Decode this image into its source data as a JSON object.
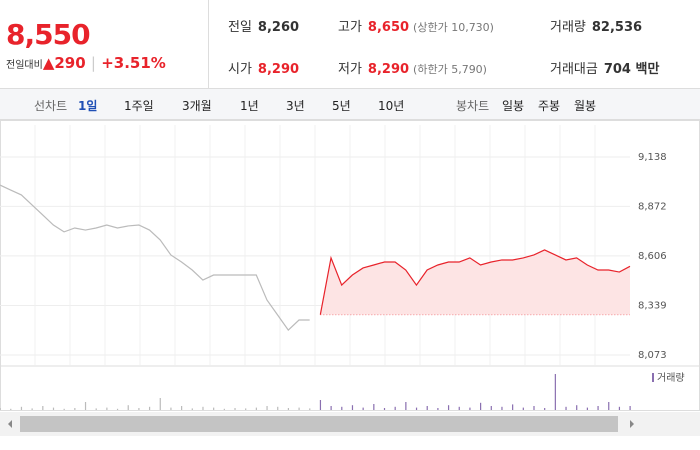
{
  "quote": {
    "price": "8,550",
    "change_label": "전일대비",
    "change": "290",
    "change_pct": "+3.51%"
  },
  "stats": [
    [
      {
        "label": "전일",
        "value": "8,260"
      },
      {
        "label": "고가",
        "value": "8,650",
        "sub": "(상한가 10,730)"
      },
      {
        "label": "거래량",
        "value": "82,536"
      }
    ],
    [
      {
        "label": "시가",
        "value": "8,290"
      },
      {
        "label": "저가",
        "value": "8,290",
        "sub": "(하한가 5,790)"
      },
      {
        "label": "거래대금",
        "value": "704 백만"
      }
    ]
  ],
  "toolbar": {
    "line_label": "선차트",
    "line_tabs": [
      "1일",
      "1주일",
      "3개월",
      "1년",
      "3년",
      "5년",
      "10년"
    ],
    "selected": 0,
    "candle_label": "봉차트",
    "candle_tabs": [
      "일봉",
      "주봉",
      "월봉"
    ]
  },
  "chart_data": {
    "type": "line",
    "ylim": [
      8019,
      9310
    ],
    "yticks": [
      {
        "value": 8073,
        "label": "8,073"
      },
      {
        "value": 8339,
        "label": "8,339"
      },
      {
        "value": 8606,
        "label": "8,606"
      },
      {
        "value": 8872,
        "label": "8,872"
      },
      {
        "value": 9138,
        "label": "9,138"
      }
    ],
    "baseline": 8290,
    "series": [
      {
        "color": "#bbbbbb",
        "values": [
          8987,
          8960,
          8934,
          8880,
          8826,
          8772,
          8735,
          8756,
          8745,
          8756,
          8772,
          8756,
          8767,
          8772,
          8745,
          8692,
          8611,
          8573,
          8530,
          8476,
          8503,
          8503,
          8503,
          8503,
          8503,
          8369,
          8288,
          8207,
          8261,
          8261,
          null,
          null,
          null,
          null,
          null,
          null,
          null,
          null,
          null,
          null,
          null,
          null,
          null,
          null,
          null,
          null,
          null,
          null,
          null,
          null,
          null,
          null,
          null,
          null,
          null,
          null,
          null,
          null,
          null,
          null
        ]
      },
      {
        "color": "#e8232b",
        "values": [
          null,
          null,
          null,
          null,
          null,
          null,
          null,
          null,
          null,
          null,
          null,
          null,
          null,
          null,
          null,
          null,
          null,
          null,
          null,
          null,
          null,
          null,
          null,
          null,
          null,
          null,
          null,
          null,
          null,
          null,
          8290,
          8595,
          8449,
          8503,
          8541,
          8557,
          8573,
          8573,
          8530,
          8449,
          8530,
          8557,
          8573,
          8573,
          8595,
          8557,
          8573,
          8584,
          8584,
          8595,
          8611,
          8638,
          8611,
          8584,
          8595,
          8557,
          8530,
          8530,
          8519,
          8550
        ]
      }
    ],
    "volume": {
      "name": "거래량",
      "color": "#8a6fb0",
      "ylim": [
        0,
        100
      ],
      "values": [
        5,
        3,
        8,
        4,
        10,
        6,
        3,
        5,
        20,
        4,
        6,
        3,
        12,
        5,
        8,
        30,
        6,
        10,
        4,
        8,
        6,
        3,
        5,
        4,
        6,
        10,
        8,
        5,
        6,
        4,
        25,
        10,
        8,
        12,
        6,
        15,
        5,
        8,
        20,
        6,
        10,
        5,
        12,
        8,
        6,
        18,
        10,
        8,
        14,
        6,
        10,
        5,
        90,
        8,
        12,
        6,
        10,
        20,
        8,
        10
      ]
    }
  }
}
